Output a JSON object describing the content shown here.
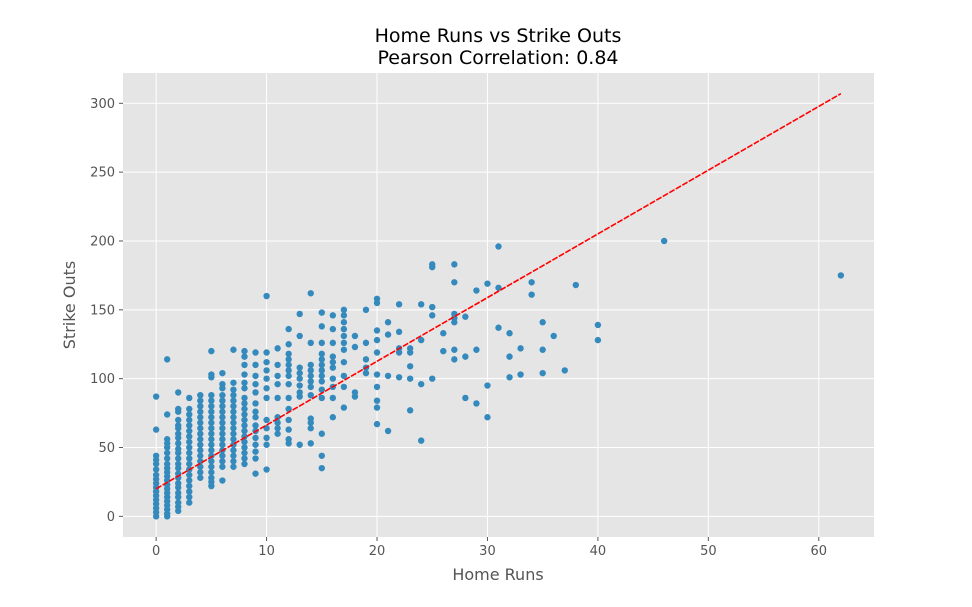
{
  "chart_data": {
    "type": "scatter",
    "title": "Home Runs vs Strike Outs",
    "subtitle": "Pearson Correlation: 0.84",
    "xlabel": "Home Runs",
    "ylabel": "Strike Outs",
    "xlim": [
      -3,
      65
    ],
    "ylim": [
      -15,
      322
    ],
    "xticks": [
      0,
      10,
      20,
      30,
      40,
      50,
      60
    ],
    "yticks": [
      0,
      50,
      100,
      150,
      200,
      250,
      300
    ],
    "grid": true,
    "style": "ggplot",
    "colors": {
      "points": "#348abd",
      "trend": "#ff0000",
      "plot_bg": "#e5e5e5",
      "grid": "#ffffff"
    },
    "trendline": {
      "x": [
        0,
        62
      ],
      "y": [
        20,
        307
      ]
    },
    "points": [
      [
        0,
        0
      ],
      [
        0,
        3
      ],
      [
        0,
        6
      ],
      [
        0,
        9
      ],
      [
        0,
        12
      ],
      [
        0,
        15
      ],
      [
        0,
        18
      ],
      [
        0,
        21
      ],
      [
        0,
        24
      ],
      [
        0,
        27
      ],
      [
        0,
        30
      ],
      [
        0,
        34
      ],
      [
        0,
        38
      ],
      [
        0,
        41
      ],
      [
        0,
        44
      ],
      [
        0,
        63
      ],
      [
        0,
        87
      ],
      [
        1,
        0
      ],
      [
        1,
        2
      ],
      [
        1,
        5
      ],
      [
        1,
        8
      ],
      [
        1,
        11
      ],
      [
        1,
        14
      ],
      [
        1,
        17
      ],
      [
        1,
        20
      ],
      [
        1,
        23
      ],
      [
        1,
        26
      ],
      [
        1,
        29
      ],
      [
        1,
        32
      ],
      [
        1,
        35
      ],
      [
        1,
        38
      ],
      [
        1,
        42
      ],
      [
        1,
        46
      ],
      [
        1,
        50
      ],
      [
        1,
        53
      ],
      [
        1,
        56
      ],
      [
        1,
        74
      ],
      [
        1,
        114
      ],
      [
        2,
        4
      ],
      [
        2,
        7
      ],
      [
        2,
        10
      ],
      [
        2,
        14
      ],
      [
        2,
        17
      ],
      [
        2,
        21
      ],
      [
        2,
        24
      ],
      [
        2,
        28
      ],
      [
        2,
        31
      ],
      [
        2,
        35
      ],
      [
        2,
        38
      ],
      [
        2,
        42
      ],
      [
        2,
        46
      ],
      [
        2,
        49
      ],
      [
        2,
        53
      ],
      [
        2,
        57
      ],
      [
        2,
        60
      ],
      [
        2,
        64
      ],
      [
        2,
        66
      ],
      [
        2,
        70
      ],
      [
        2,
        76
      ],
      [
        2,
        78
      ],
      [
        2,
        90
      ],
      [
        3,
        10
      ],
      [
        3,
        14
      ],
      [
        3,
        18
      ],
      [
        3,
        22
      ],
      [
        3,
        26
      ],
      [
        3,
        30
      ],
      [
        3,
        34
      ],
      [
        3,
        38
      ],
      [
        3,
        42
      ],
      [
        3,
        46
      ],
      [
        3,
        50
      ],
      [
        3,
        54
      ],
      [
        3,
        58
      ],
      [
        3,
        62
      ],
      [
        3,
        66
      ],
      [
        3,
        70
      ],
      [
        3,
        74
      ],
      [
        3,
        78
      ],
      [
        3,
        86
      ],
      [
        4,
        28
      ],
      [
        4,
        32
      ],
      [
        4,
        36
      ],
      [
        4,
        40
      ],
      [
        4,
        44
      ],
      [
        4,
        48
      ],
      [
        4,
        52
      ],
      [
        4,
        56
      ],
      [
        4,
        60
      ],
      [
        4,
        64
      ],
      [
        4,
        68
      ],
      [
        4,
        72
      ],
      [
        4,
        76
      ],
      [
        4,
        80
      ],
      [
        4,
        84
      ],
      [
        4,
        88
      ],
      [
        5,
        22
      ],
      [
        5,
        25
      ],
      [
        5,
        28
      ],
      [
        5,
        32
      ],
      [
        5,
        36
      ],
      [
        5,
        40
      ],
      [
        5,
        44
      ],
      [
        5,
        48
      ],
      [
        5,
        52
      ],
      [
        5,
        56
      ],
      [
        5,
        60
      ],
      [
        5,
        64
      ],
      [
        5,
        68
      ],
      [
        5,
        72
      ],
      [
        5,
        76
      ],
      [
        5,
        80
      ],
      [
        5,
        84
      ],
      [
        5,
        88
      ],
      [
        5,
        101
      ],
      [
        5,
        103
      ],
      [
        5,
        120
      ],
      [
        6,
        26
      ],
      [
        6,
        36
      ],
      [
        6,
        40
      ],
      [
        6,
        44
      ],
      [
        6,
        48
      ],
      [
        6,
        52
      ],
      [
        6,
        56
      ],
      [
        6,
        60
      ],
      [
        6,
        64
      ],
      [
        6,
        68
      ],
      [
        6,
        72
      ],
      [
        6,
        76
      ],
      [
        6,
        80
      ],
      [
        6,
        84
      ],
      [
        6,
        88
      ],
      [
        6,
        93
      ],
      [
        6,
        96
      ],
      [
        6,
        104
      ],
      [
        7,
        36
      ],
      [
        7,
        40
      ],
      [
        7,
        44
      ],
      [
        7,
        48
      ],
      [
        7,
        52
      ],
      [
        7,
        56
      ],
      [
        7,
        60
      ],
      [
        7,
        64
      ],
      [
        7,
        68
      ],
      [
        7,
        72
      ],
      [
        7,
        76
      ],
      [
        7,
        80
      ],
      [
        7,
        84
      ],
      [
        7,
        88
      ],
      [
        7,
        92
      ],
      [
        7,
        97
      ],
      [
        7,
        121
      ],
      [
        8,
        38
      ],
      [
        8,
        42
      ],
      [
        8,
        46
      ],
      [
        8,
        50
      ],
      [
        8,
        54
      ],
      [
        8,
        58
      ],
      [
        8,
        62
      ],
      [
        8,
        66
      ],
      [
        8,
        70
      ],
      [
        8,
        74
      ],
      [
        8,
        78
      ],
      [
        8,
        82
      ],
      [
        8,
        86
      ],
      [
        8,
        93
      ],
      [
        8,
        97
      ],
      [
        8,
        103
      ],
      [
        8,
        110
      ],
      [
        8,
        116
      ],
      [
        8,
        120
      ],
      [
        9,
        31
      ],
      [
        9,
        42
      ],
      [
        9,
        47
      ],
      [
        9,
        52
      ],
      [
        9,
        57
      ],
      [
        9,
        62
      ],
      [
        9,
        66
      ],
      [
        9,
        72
      ],
      [
        9,
        76
      ],
      [
        9,
        82
      ],
      [
        9,
        90
      ],
      [
        9,
        96
      ],
      [
        9,
        102
      ],
      [
        9,
        110
      ],
      [
        9,
        119
      ],
      [
        10,
        34
      ],
      [
        10,
        52
      ],
      [
        10,
        57
      ],
      [
        10,
        64
      ],
      [
        10,
        70
      ],
      [
        10,
        86
      ],
      [
        10,
        93
      ],
      [
        10,
        100
      ],
      [
        10,
        106
      ],
      [
        10,
        112
      ],
      [
        10,
        119
      ],
      [
        10,
        160
      ],
      [
        11,
        60
      ],
      [
        11,
        64
      ],
      [
        11,
        68
      ],
      [
        11,
        72
      ],
      [
        11,
        86
      ],
      [
        11,
        96
      ],
      [
        11,
        102
      ],
      [
        11,
        110
      ],
      [
        11,
        122
      ],
      [
        12,
        53
      ],
      [
        12,
        56
      ],
      [
        12,
        63
      ],
      [
        12,
        70
      ],
      [
        12,
        78
      ],
      [
        12,
        86
      ],
      [
        12,
        96
      ],
      [
        12,
        102
      ],
      [
        12,
        106
      ],
      [
        12,
        110
      ],
      [
        12,
        114
      ],
      [
        12,
        118
      ],
      [
        12,
        125
      ],
      [
        12,
        136
      ],
      [
        13,
        52
      ],
      [
        13,
        87
      ],
      [
        13,
        90
      ],
      [
        13,
        95
      ],
      [
        13,
        100
      ],
      [
        13,
        104
      ],
      [
        13,
        108
      ],
      [
        13,
        131
      ],
      [
        13,
        147
      ],
      [
        14,
        53
      ],
      [
        14,
        64
      ],
      [
        14,
        68
      ],
      [
        14,
        71
      ],
      [
        14,
        88
      ],
      [
        14,
        94
      ],
      [
        14,
        98
      ],
      [
        14,
        102
      ],
      [
        14,
        106
      ],
      [
        14,
        110
      ],
      [
        14,
        126
      ],
      [
        14,
        162
      ],
      [
        15,
        35
      ],
      [
        15,
        44
      ],
      [
        15,
        60
      ],
      [
        15,
        86
      ],
      [
        15,
        92
      ],
      [
        15,
        98
      ],
      [
        15,
        102
      ],
      [
        15,
        106
      ],
      [
        15,
        110
      ],
      [
        15,
        114
      ],
      [
        15,
        118
      ],
      [
        15,
        126
      ],
      [
        15,
        138
      ],
      [
        15,
        148
      ],
      [
        16,
        72
      ],
      [
        16,
        86
      ],
      [
        16,
        94
      ],
      [
        16,
        100
      ],
      [
        16,
        108
      ],
      [
        16,
        112
      ],
      [
        16,
        116
      ],
      [
        16,
        126
      ],
      [
        16,
        136
      ],
      [
        16,
        146
      ],
      [
        17,
        79
      ],
      [
        17,
        94
      ],
      [
        17,
        102
      ],
      [
        17,
        112
      ],
      [
        17,
        121
      ],
      [
        17,
        126
      ],
      [
        17,
        131
      ],
      [
        17,
        136
      ],
      [
        17,
        141
      ],
      [
        17,
        146
      ],
      [
        17,
        150
      ],
      [
        18,
        87
      ],
      [
        18,
        90
      ],
      [
        18,
        123
      ],
      [
        18,
        131
      ],
      [
        19,
        104
      ],
      [
        19,
        108
      ],
      [
        19,
        114
      ],
      [
        19,
        126
      ],
      [
        19,
        150
      ],
      [
        20,
        67
      ],
      [
        20,
        79
      ],
      [
        20,
        84
      ],
      [
        20,
        94
      ],
      [
        20,
        103
      ],
      [
        20,
        119
      ],
      [
        20,
        128
      ],
      [
        20,
        135
      ],
      [
        20,
        155
      ],
      [
        20,
        158
      ],
      [
        21,
        62
      ],
      [
        21,
        102
      ],
      [
        21,
        132
      ],
      [
        21,
        141
      ],
      [
        22,
        101
      ],
      [
        22,
        119
      ],
      [
        22,
        122
      ],
      [
        22,
        134
      ],
      [
        22,
        154
      ],
      [
        23,
        77
      ],
      [
        23,
        100
      ],
      [
        23,
        109
      ],
      [
        23,
        119
      ],
      [
        23,
        122
      ],
      [
        24,
        55
      ],
      [
        24,
        96
      ],
      [
        24,
        128
      ],
      [
        24,
        154
      ],
      [
        25,
        100
      ],
      [
        25,
        146
      ],
      [
        25,
        152
      ],
      [
        25,
        181
      ],
      [
        25,
        183
      ],
      [
        26,
        120
      ],
      [
        26,
        133
      ],
      [
        27,
        114
      ],
      [
        27,
        121
      ],
      [
        27,
        141
      ],
      [
        27,
        144
      ],
      [
        27,
        147
      ],
      [
        27,
        170
      ],
      [
        27,
        183
      ],
      [
        28,
        86
      ],
      [
        28,
        116
      ],
      [
        28,
        145
      ],
      [
        29,
        82
      ],
      [
        29,
        121
      ],
      [
        29,
        164
      ],
      [
        30,
        72
      ],
      [
        30,
        95
      ],
      [
        30,
        169
      ],
      [
        31,
        137
      ],
      [
        31,
        166
      ],
      [
        31,
        196
      ],
      [
        32,
        101
      ],
      [
        32,
        116
      ],
      [
        32,
        133
      ],
      [
        33,
        103
      ],
      [
        33,
        122
      ],
      [
        34,
        161
      ],
      [
        34,
        170
      ],
      [
        35,
        104
      ],
      [
        35,
        121
      ],
      [
        35,
        141
      ],
      [
        36,
        131
      ],
      [
        37,
        106
      ],
      [
        38,
        168
      ],
      [
        40,
        128
      ],
      [
        40,
        139
      ],
      [
        46,
        200
      ],
      [
        62,
        175
      ]
    ]
  }
}
